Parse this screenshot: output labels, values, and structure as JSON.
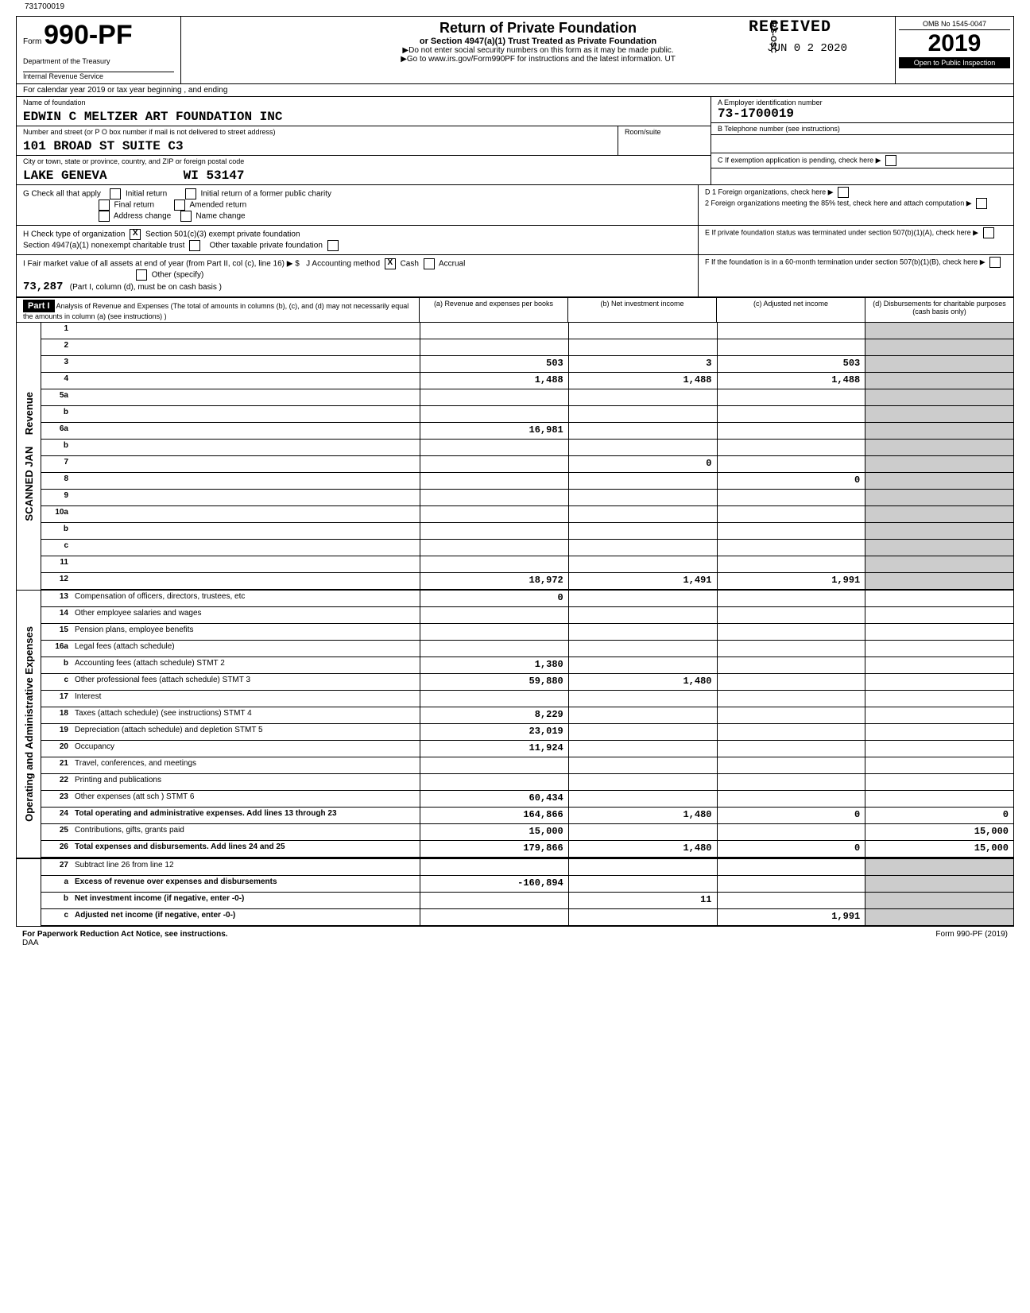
{
  "top_id": "731700019",
  "form": {
    "prefix": "Form",
    "number": "990-PF",
    "dept1": "Department of the Treasury",
    "dept2": "Internal Revenue Service"
  },
  "title": {
    "main": "Return of Private Foundation",
    "sub": "or Section 4947(a)(1) Trust Treated as Private Foundation",
    "warning1": "▶Do not enter social security numbers on this form as it may be made public.",
    "warning2": "▶Go to www.irs.gov/Form990PF for instructions and the latest information."
  },
  "stamp": {
    "received": "RECEIVED",
    "date": "JUN 0 2 2020",
    "irs": "IRS-OSC",
    "ut": "UT"
  },
  "year_box": {
    "omb": "OMB No 1545-0047",
    "year": "2019",
    "inspection": "Open to Public Inspection"
  },
  "calendar": "For calendar year 2019 or tax year beginning                    , and ending",
  "foundation": {
    "name_label": "Name of foundation",
    "name": "EDWIN C MELTZER ART FOUNDATION INC",
    "addr_label": "Number and street (or P O box number if mail is not delivered to street address)",
    "room_label": "Room/suite",
    "addr": "101 BROAD ST SUITE C3",
    "city_label": "City or town, state or province, country, and ZIP or foreign postal code",
    "city": "LAKE GENEVA",
    "state_zip": "WI  53147"
  },
  "ein": {
    "label_a": "A   Employer identification number",
    "value": "73-1700019",
    "label_b": "B   Telephone number (see instructions)",
    "label_c": "C   If exemption application is pending, check here",
    "label_d1": "D  1  Foreign organizations, check here",
    "label_d2": "2  Foreign organizations meeting the 85% test, check here and attach computation",
    "label_e": "E   If private foundation status was terminated under section 507(b)(1)(A), check here",
    "label_f": "F   If the foundation is in a 60-month termination under section 507(b)(1)(B), check here"
  },
  "section_g": {
    "label": "G  Check all that apply",
    "opts": [
      "Initial return",
      "Final return",
      "Address change",
      "Initial return of a former public charity",
      "Amended return",
      "Name change"
    ]
  },
  "section_h": {
    "label": "H  Check type of organization",
    "opt1": "Section 501(c)(3) exempt private foundation",
    "opt2": "Section 4947(a)(1) nonexempt charitable trust",
    "opt3": "Other taxable private foundation"
  },
  "section_i": {
    "label": "I   Fair market value of all assets at end of year (from Part II, col (c), line 16) ▶ $",
    "j_label": "J  Accounting method",
    "cash": "Cash",
    "accrual": "Accrual",
    "other": "Other (specify)",
    "value": "73,287",
    "note": "(Part I, column (d), must be on cash basis )"
  },
  "part1": {
    "label": "Part I",
    "desc": "Analysis of Revenue and Expenses (The total of amounts in columns (b), (c), and (d) may not necessarily equal the amounts in column (a) (see instructions) )",
    "col_a": "(a) Revenue and expenses per books",
    "col_b": "(b) Net investment income",
    "col_c": "(c) Adjusted net income",
    "col_d": "(d) Disbursements for charitable purposes (cash basis only)"
  },
  "side_labels": {
    "revenue": "Revenue",
    "expenses": "Operating and Administrative Expenses"
  },
  "scanned": "SCANNED JAN",
  "rows": [
    {
      "n": "1",
      "d": "",
      "a": "",
      "b": "",
      "c": ""
    },
    {
      "n": "2",
      "d": "",
      "a": "",
      "b": "",
      "c": ""
    },
    {
      "n": "3",
      "d": "",
      "a": "503",
      "b": "3",
      "c": "503"
    },
    {
      "n": "4",
      "d": "",
      "a": "1,488",
      "b": "1,488",
      "c": "1,488"
    },
    {
      "n": "5a",
      "d": "",
      "a": "",
      "b": "",
      "c": ""
    },
    {
      "n": "b",
      "d": "",
      "a": "",
      "b": "",
      "c": ""
    },
    {
      "n": "6a",
      "d": "",
      "a": "16,981",
      "b": "",
      "c": ""
    },
    {
      "n": "b",
      "d": "",
      "a": "",
      "b": "",
      "c": ""
    },
    {
      "n": "7",
      "d": "",
      "a": "",
      "b": "0",
      "c": ""
    },
    {
      "n": "8",
      "d": "",
      "a": "",
      "b": "",
      "c": "0"
    },
    {
      "n": "9",
      "d": "",
      "a": "",
      "b": "",
      "c": ""
    },
    {
      "n": "10a",
      "d": "",
      "a": "",
      "b": "",
      "c": ""
    },
    {
      "n": "b",
      "d": "",
      "a": "",
      "b": "",
      "c": ""
    },
    {
      "n": "c",
      "d": "",
      "a": "",
      "b": "",
      "c": ""
    },
    {
      "n": "11",
      "d": "",
      "a": "",
      "b": "",
      "c": ""
    },
    {
      "n": "12",
      "d": "",
      "a": "18,972",
      "b": "1,491",
      "c": "1,991",
      "bold": true
    }
  ],
  "exp_rows": [
    {
      "n": "13",
      "d": "Compensation of officers, directors, trustees, etc",
      "a": "0",
      "b": "",
      "c": "",
      "dd": ""
    },
    {
      "n": "14",
      "d": "Other employee salaries and wages",
      "a": "",
      "b": "",
      "c": "",
      "dd": ""
    },
    {
      "n": "15",
      "d": "Pension plans, employee benefits",
      "a": "",
      "b": "",
      "c": "",
      "dd": ""
    },
    {
      "n": "16a",
      "d": "Legal fees (attach schedule)",
      "a": "",
      "b": "",
      "c": "",
      "dd": ""
    },
    {
      "n": "b",
      "d": "Accounting fees (attach schedule)      STMT 2",
      "a": "1,380",
      "b": "",
      "c": "",
      "dd": ""
    },
    {
      "n": "c",
      "d": "Other professional fees (attach schedule)   STMT 3",
      "a": "59,880",
      "b": "1,480",
      "c": "",
      "dd": ""
    },
    {
      "n": "17",
      "d": "Interest",
      "a": "",
      "b": "",
      "c": "",
      "dd": ""
    },
    {
      "n": "18",
      "d": "Taxes (attach schedule) (see instructions)   STMT 4",
      "a": "8,229",
      "b": "",
      "c": "",
      "dd": ""
    },
    {
      "n": "19",
      "d": "Depreciation (attach schedule) and depletion  STMT 5",
      "a": "23,019",
      "b": "",
      "c": "",
      "dd": ""
    },
    {
      "n": "20",
      "d": "Occupancy",
      "a": "11,924",
      "b": "",
      "c": "",
      "dd": ""
    },
    {
      "n": "21",
      "d": "Travel, conferences, and meetings",
      "a": "",
      "b": "",
      "c": "",
      "dd": ""
    },
    {
      "n": "22",
      "d": "Printing and publications",
      "a": "",
      "b": "",
      "c": "",
      "dd": ""
    },
    {
      "n": "23",
      "d": "Other expenses (att sch )           STMT 6",
      "a": "60,434",
      "b": "",
      "c": "",
      "dd": ""
    },
    {
      "n": "24",
      "d": "Total operating and administrative expenses. Add lines 13 through 23",
      "a": "164,866",
      "b": "1,480",
      "c": "0",
      "dd": "0",
      "bold": true
    },
    {
      "n": "25",
      "d": "Contributions, gifts, grants paid",
      "a": "15,000",
      "b": "",
      "c": "",
      "dd": "15,000"
    },
    {
      "n": "26",
      "d": "Total expenses and disbursements. Add lines 24 and 25",
      "a": "179,866",
      "b": "1,480",
      "c": "0",
      "dd": "15,000",
      "bold": true
    }
  ],
  "bottom_rows": [
    {
      "n": "27",
      "d": "Subtract line 26 from line 12",
      "a": "",
      "b": "",
      "c": "",
      "dd": ""
    },
    {
      "n": "a",
      "d": "Excess of revenue over expenses and disbursements",
      "a": "-160,894",
      "b": "",
      "c": "",
      "dd": "",
      "bold": true
    },
    {
      "n": "b",
      "d": "Net investment income (if negative, enter -0-)",
      "a": "",
      "b": "11",
      "c": "",
      "dd": "",
      "bold": true
    },
    {
      "n": "c",
      "d": "Adjusted net income (if negative, enter -0-)",
      "a": "",
      "b": "",
      "c": "1,991",
      "dd": "",
      "bold": true
    }
  ],
  "footer": {
    "left": "For Paperwork Reduction Act Notice, see instructions.",
    "mid": "DAA",
    "right": "Form 990-PF (2019)"
  }
}
